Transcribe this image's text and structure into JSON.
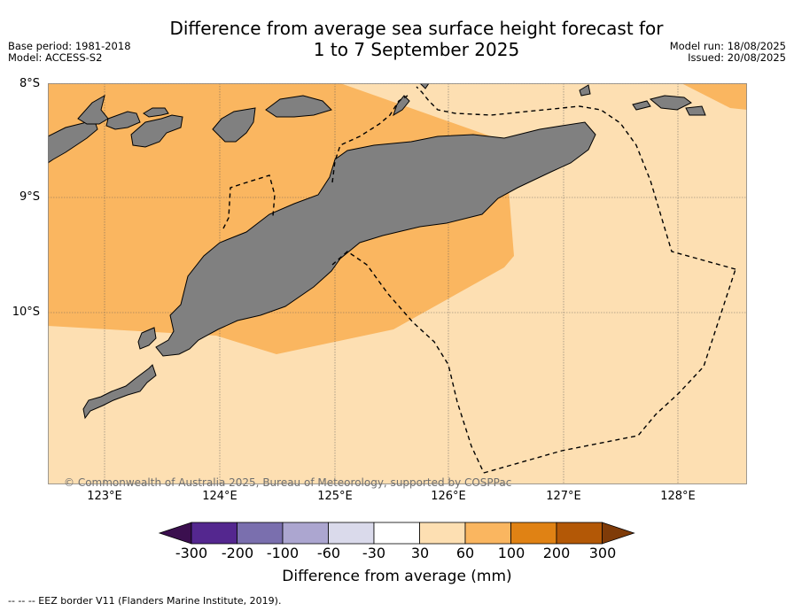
{
  "title": {
    "line1": "Difference from average sea surface height forecast for",
    "line2": "1 to 7 September 2025"
  },
  "meta_left": {
    "base_period": "Base period: 1981-2018",
    "model": "Model: ACCESS-S2"
  },
  "meta_right": {
    "model_run": "Model run: 18/08/2025",
    "issued": "Issued: 20/08/2025"
  },
  "map": {
    "lat_labels": [
      "8°S",
      "9°S",
      "10°S"
    ],
    "lon_labels": [
      "123°E",
      "124°E",
      "125°E",
      "126°E",
      "127°E",
      "128°E"
    ],
    "gridlines": true,
    "colors": {
      "land": "#808080",
      "band_30_60": "#fddfb2",
      "band_60_100": "#fab660",
      "eez_border": "#000000"
    }
  },
  "copyright": "© Commonwealth of Australia 2025, Bureau of Meteorology, supported by COSPPac",
  "colorbar": {
    "label": "Difference from average (mm)",
    "ticks": [
      "-300",
      "-200",
      "-100",
      "-60",
      "-30",
      "30",
      "60",
      "100",
      "200",
      "300"
    ],
    "colors": [
      "#3b0f4f",
      "#54278f",
      "#7a6fae",
      "#aca6d0",
      "#dadaeb",
      "#ffffff",
      "#fddfb2",
      "#fab660",
      "#e08214",
      "#b35806",
      "#7f3b08"
    ]
  },
  "footnote": "--  --  -- EEZ border V11 (Flanders Marine Institute, 2019)."
}
